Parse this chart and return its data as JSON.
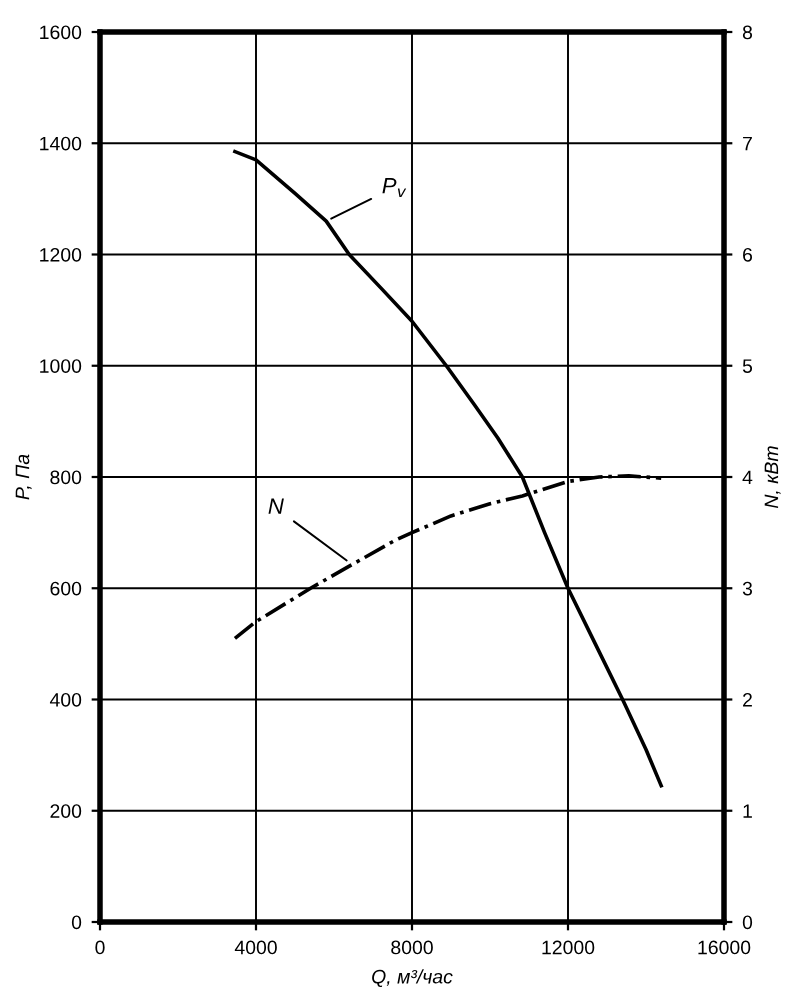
{
  "chart_data": {
    "type": "line",
    "xlabel": "Q, м³/час",
    "ylabel": "P, Па",
    "y2label": "N, кВт",
    "xlim": [
      0,
      16000
    ],
    "xticks": [
      0,
      4000,
      8000,
      12000,
      16000
    ],
    "ylim": [
      0,
      1600
    ],
    "yticks": [
      0,
      200,
      400,
      600,
      800,
      1000,
      1200,
      1400,
      1600
    ],
    "y2lim": [
      0,
      8
    ],
    "y2ticks": [
      0,
      1,
      2,
      3,
      4,
      5,
      6,
      7,
      8
    ],
    "grid": true,
    "legend": false,
    "marker": "none",
    "series": [
      {
        "color": "#000000",
        "line_style": "solid",
        "x": [
          3460,
          4000,
          5000,
          5800,
          6390,
          7200,
          8000,
          8880,
          9600,
          10200,
          10830,
          11400,
          12000,
          12700,
          13400,
          14000,
          14390
        ],
        "values": [
          1385,
          1370,
          1310,
          1260,
          1200,
          1140,
          1080,
          1000,
          930,
          870,
          800,
          700,
          600,
          500,
          400,
          310,
          245
        ]
      },
      {
        "color": "#000000",
        "line_style": "dashdot",
        "axis": "y2",
        "x": [
          3460,
          4000,
          5400,
          6500,
          7560,
          8000,
          9000,
          10000,
          10830,
          12000,
          12800,
          13560,
          14390
        ],
        "values": [
          2.55,
          2.7,
          3.0,
          3.22,
          3.43,
          3.5,
          3.65,
          3.76,
          3.83,
          3.96,
          4.0,
          4.01,
          3.99
        ]
      }
    ],
    "annotations": [
      {
        "text": "P$_{v}$",
        "x": 5800,
        "y": 1260
      },
      {
        "text": "N",
        "x": 6440,
        "y": 644
      }
    ]
  }
}
